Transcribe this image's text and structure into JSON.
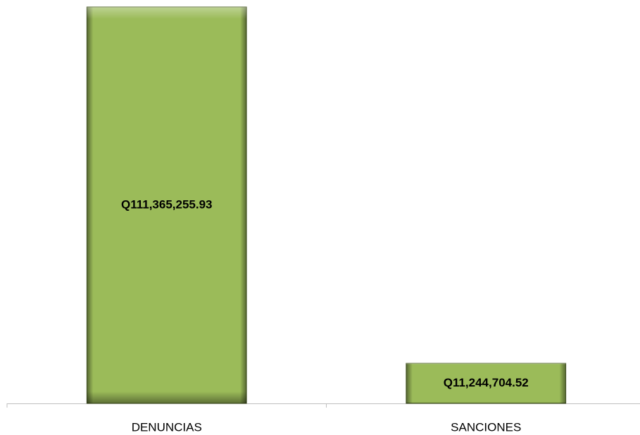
{
  "chart_data": {
    "type": "bar",
    "categories": [
      "DENUNCIAS",
      "SANCIONES"
    ],
    "values": [
      111365255.93,
      11244704.52
    ],
    "value_labels": [
      "Q111,365,255.93",
      "Q11,244,704.52"
    ],
    "color": "#9bbb59"
  }
}
